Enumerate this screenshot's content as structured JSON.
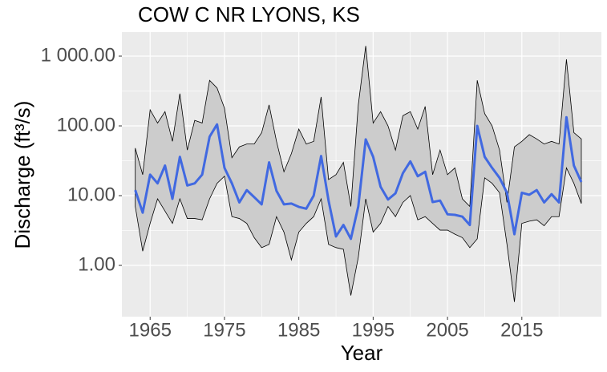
{
  "chart_data": {
    "type": "line",
    "title": "COW C NR LYONS, KS",
    "xlabel": "Year",
    "ylabel": "Discharge (ft³/s)",
    "x": [
      1963,
      1964,
      1965,
      1966,
      1967,
      1968,
      1969,
      1970,
      1971,
      1972,
      1973,
      1974,
      1975,
      1976,
      1977,
      1978,
      1979,
      1980,
      1981,
      1982,
      1983,
      1984,
      1985,
      1986,
      1987,
      1988,
      1989,
      1990,
      1991,
      1992,
      1993,
      1994,
      1995,
      1996,
      1997,
      1998,
      1999,
      2000,
      2001,
      2002,
      2003,
      2004,
      2005,
      2006,
      2007,
      2008,
      2009,
      2010,
      2011,
      2012,
      2013,
      2014,
      2015,
      2016,
      2017,
      2018,
      2019,
      2020,
      2021,
      2022,
      2023
    ],
    "series": [
      {
        "color": "#4169E1",
        "values": [
          12,
          5.7,
          20,
          15,
          27,
          9,
          36,
          14,
          15,
          20,
          70,
          105,
          25,
          15,
          8,
          12,
          9.5,
          7.5,
          30,
          11.7,
          7.5,
          7.7,
          6.9,
          6.5,
          10,
          37,
          8.5,
          2.6,
          3.8,
          2.4,
          7,
          64,
          36,
          13.4,
          8.8,
          10.8,
          21,
          31,
          19,
          22,
          8.1,
          8.5,
          5.4,
          5.3,
          5.0,
          3.8,
          100,
          36,
          25,
          18,
          11,
          2.8,
          11,
          10.3,
          12,
          8,
          10.5,
          8,
          133,
          27,
          15.7
        ]
      }
    ],
    "ribbon": {
      "fill": "#cccccc",
      "stroke": "#000000",
      "upper": [
        48,
        20,
        170,
        110,
        160,
        60,
        290,
        45,
        120,
        110,
        450,
        350,
        180,
        35,
        50,
        55,
        55,
        80,
        200,
        60,
        22,
        40,
        90,
        55,
        60,
        260,
        17,
        20,
        30,
        7,
        200,
        1400,
        110,
        160,
        100,
        45,
        140,
        160,
        90,
        190,
        20,
        45,
        20,
        25,
        9,
        7,
        450,
        150,
        100,
        45,
        8,
        50,
        60,
        75,
        65,
        55,
        60,
        55,
        900,
        80,
        65
      ],
      "lower": [
        7,
        1.6,
        4,
        9,
        6,
        4,
        9,
        4.7,
        4.7,
        4.5,
        9,
        15,
        19,
        5,
        4.7,
        4,
        2.5,
        1.8,
        2,
        5,
        3,
        1.2,
        3,
        4,
        5,
        9,
        2,
        1.8,
        1.7,
        0.37,
        1.3,
        9,
        3,
        4,
        7,
        5,
        8,
        10,
        4.5,
        5,
        4,
        3.2,
        3.2,
        2.8,
        2.5,
        1.8,
        2.4,
        18,
        15,
        11,
        2,
        0.3,
        4,
        4.3,
        4.5,
        3.7,
        5,
        5,
        25,
        15,
        7.7
      ]
    },
    "xlim": [
      1961.2,
      2025.7
    ],
    "xticks": [
      1965,
      1975,
      1985,
      1995,
      2005,
      2015
    ],
    "ylim": [
      0.184,
      2213
    ],
    "ylog": true,
    "yticks": [
      {
        "value": 1,
        "label": "1.00"
      },
      {
        "value": 10,
        "label": "10.00"
      },
      {
        "value": 100,
        "label": "100.00"
      },
      {
        "value": 1000,
        "label": "1 000.00"
      }
    ],
    "grid": true
  }
}
